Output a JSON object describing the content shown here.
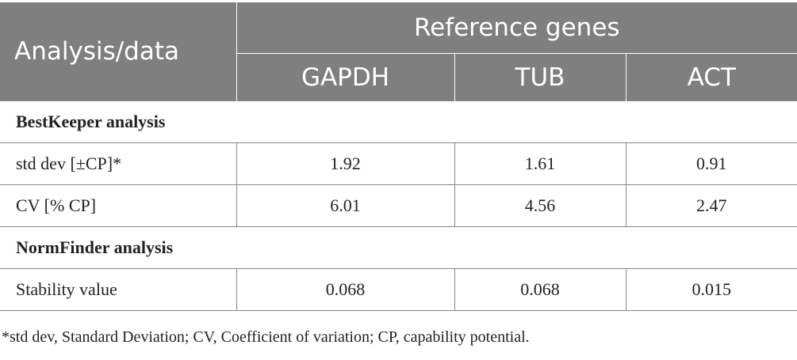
{
  "table": {
    "corner_label": "Analysis/data",
    "group_label": "Reference genes",
    "genes": [
      "GAPDH",
      "TUB",
      "ACT"
    ],
    "sections": [
      {
        "title": "BestKeeper analysis",
        "rows": [
          {
            "label": "std dev [±CP]*",
            "values": [
              "1.92",
              "1.61",
              "0.91"
            ]
          },
          {
            "label": "CV [% CP]",
            "values": [
              "6.01",
              "4.56",
              "2.47"
            ]
          }
        ]
      },
      {
        "title": "NormFinder analysis",
        "rows": [
          {
            "label": "Stability value",
            "values": [
              "0.068",
              "0.068",
              "0.015"
            ]
          }
        ]
      }
    ]
  },
  "footnote": "*std dev, Standard Deviation; CV, Coefficient of variation; CP, capability potential."
}
